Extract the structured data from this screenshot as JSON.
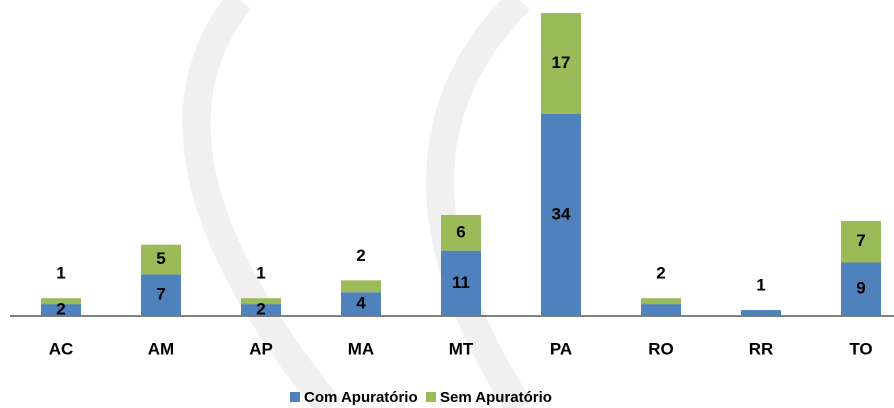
{
  "chart_data": {
    "type": "stacked_bar",
    "categories": [
      "AC",
      "AM",
      "AP",
      "MA",
      "MT",
      "PA",
      "RO",
      "RR",
      "TO"
    ],
    "series": [
      {
        "name": "Com Apuratório",
        "color": "#4f81bd",
        "values": [
          2,
          7,
          2,
          4,
          11,
          34,
          2,
          1,
          9
        ],
        "value_labels": [
          "2",
          "7",
          "2",
          "4",
          "11",
          "34",
          "2",
          "1",
          "9"
        ]
      },
      {
        "name": "Sem Apuratório",
        "color": "#9bbb59",
        "values": [
          1,
          5,
          1,
          2,
          6,
          17,
          1,
          null,
          7
        ],
        "value_labels": [
          "1",
          "5",
          "1",
          "2",
          "6",
          "17",
          null,
          null,
          "7"
        ]
      }
    ],
    "ylim": [
      0,
      51
    ],
    "legend": "bottom"
  }
}
